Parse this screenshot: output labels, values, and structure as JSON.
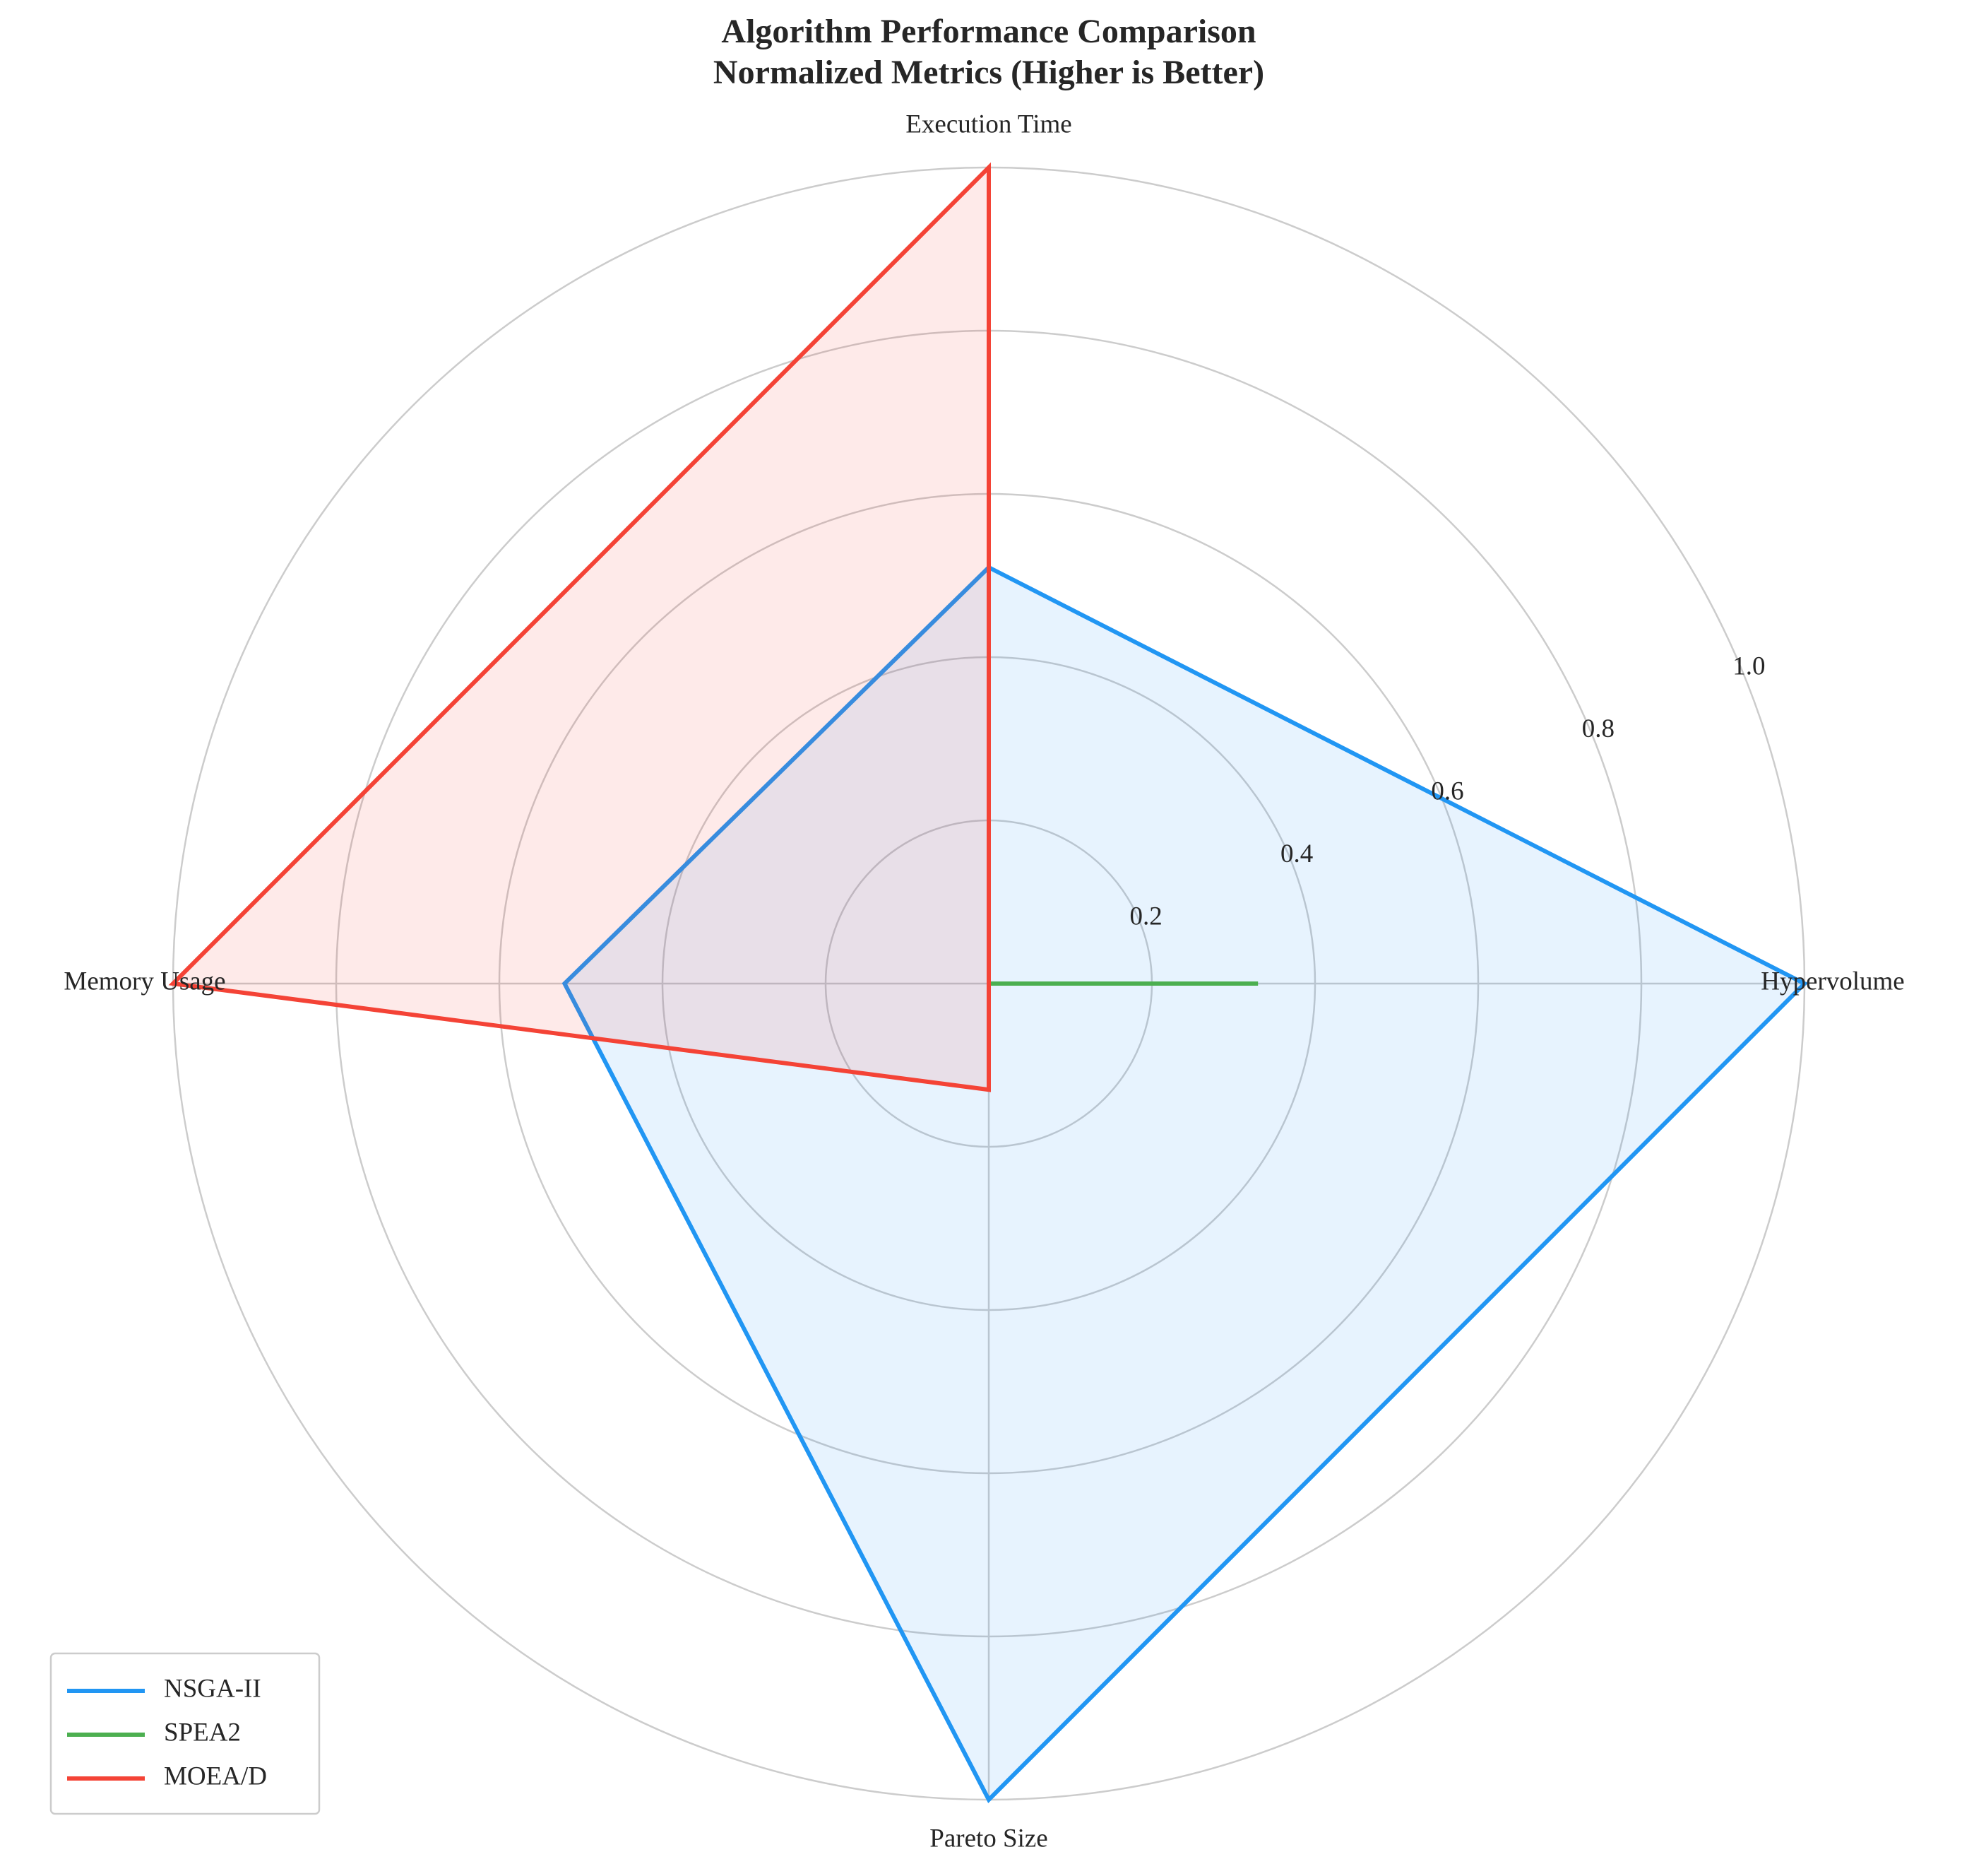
{
  "chart_data": {
    "type": "radar",
    "title": "Algorithm Performance Comparison",
    "subtitle": "Normalized Metrics (Higher is Better)",
    "axes": [
      "Hypervolume",
      "Execution Time",
      "Memory Usage",
      "Pareto Size"
    ],
    "rlim": [
      0,
      1.0
    ],
    "rticks": [
      0.2,
      0.4,
      0.6,
      0.8,
      1.0
    ],
    "rtick_labels": [
      "0.2",
      "0.4",
      "0.6",
      "0.8",
      "1.0"
    ],
    "grid": true,
    "legend_position": "lower-left",
    "series": [
      {
        "name": "NSGA-II",
        "color": "#2196F3",
        "values": [
          1.0,
          0.51,
          0.52,
          1.0
        ]
      },
      {
        "name": "SPEA2",
        "color": "#4CAF50",
        "values": [
          0.33,
          0.0,
          0.0,
          0.0
        ]
      },
      {
        "name": "MOEA/D",
        "color": "#F44336",
        "values": [
          0.0,
          1.0,
          1.0,
          0.13
        ]
      }
    ]
  }
}
